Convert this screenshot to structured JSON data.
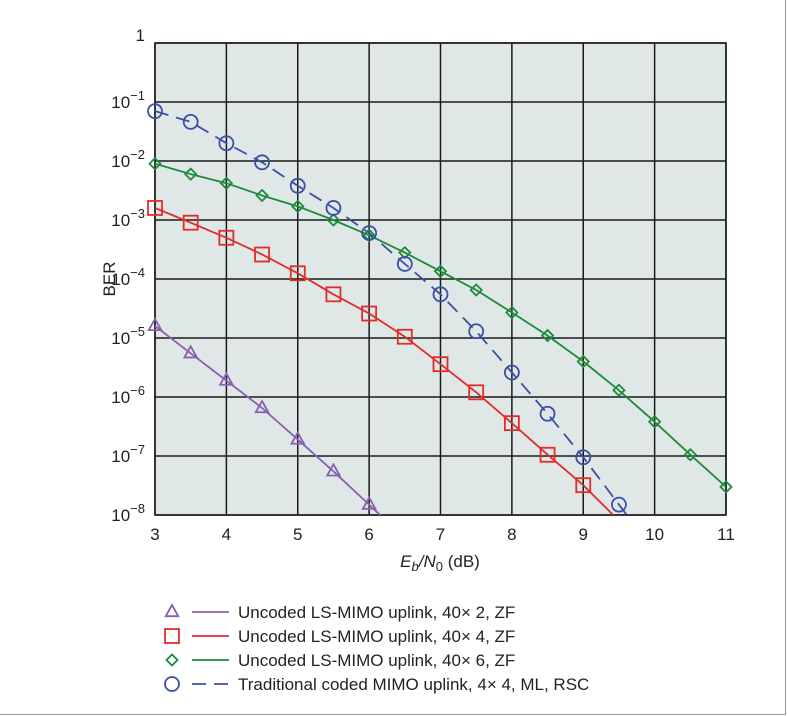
{
  "chart_data": {
    "type": "line",
    "title": "",
    "xlabel": {
      "main": "E",
      "main_sub": "b",
      "slash": "/N",
      "sub": "0",
      "unit": " (dB)"
    },
    "ylabel": "BER",
    "xlim": [
      3,
      11
    ],
    "ylim": [
      1e-08,
      1
    ],
    "yscale": "log",
    "grid": true,
    "legend_position": "bottom",
    "x_ticks": [
      "3",
      "4",
      "5",
      "6",
      "7",
      "8",
      "9",
      "10",
      "11"
    ],
    "y_ticks": [
      {
        "value": 1,
        "base": "1",
        "exp": ""
      },
      {
        "value": 0.1,
        "base": "10",
        "exp": "−1"
      },
      {
        "value": 0.01,
        "base": "10",
        "exp": "−2"
      },
      {
        "value": 0.001,
        "base": "10",
        "exp": "−3"
      },
      {
        "value": 0.0001,
        "base": "10",
        "exp": "−4"
      },
      {
        "value": 1e-05,
        "base": "10",
        "exp": "−5"
      },
      {
        "value": 1e-06,
        "base": "10",
        "exp": "−6"
      },
      {
        "value": 1e-07,
        "base": "10",
        "exp": "−7"
      },
      {
        "value": 1e-08,
        "base": "10",
        "exp": "−8"
      }
    ],
    "series": [
      {
        "name": "Uncoded LS-MIMO uplink, 40× 2, ZF",
        "color": "#8b5fb0",
        "marker": "triangle",
        "line": "solid",
        "x": [
          3,
          3.5,
          4,
          4.5,
          5,
          5.5,
          6,
          6.5
        ],
        "y": [
          1.6e-05,
          5.5e-06,
          1.9e-06,
          6.5e-07,
          1.9e-07,
          5.5e-08,
          1.5e-08,
          4e-09
        ],
        "marker_x": [
          3,
          3.5,
          4,
          4.5,
          5,
          5.5,
          6
        ]
      },
      {
        "name": "Uncoded LS-MIMO uplink, 40× 4, ZF",
        "color": "#e32b2b",
        "marker": "square",
        "line": "solid",
        "x": [
          3,
          3.5,
          4,
          4.5,
          5,
          5.5,
          6,
          6.5,
          7,
          7.5,
          8,
          8.5,
          9,
          9.5
        ],
        "y": [
          0.0016,
          0.0009,
          0.0005,
          0.00026,
          0.000125,
          5.5e-05,
          2.6e-05,
          1.05e-05,
          3.6e-06,
          1.2e-06,
          3.6e-07,
          1.05e-07,
          3.2e-08,
          8e-09
        ],
        "marker_x": [
          3,
          3.5,
          4,
          4.5,
          5,
          5.5,
          6,
          6.5,
          7,
          7.5,
          8,
          8.5,
          9
        ]
      },
      {
        "name": "Uncoded LS-MIMO uplink, 40× 6, ZF",
        "color": "#1f8a3b",
        "marker": "diamond",
        "line": "solid",
        "x": [
          3,
          3.5,
          4,
          4.5,
          5,
          5.5,
          6,
          6.5,
          7,
          7.5,
          8,
          8.5,
          9,
          9.5,
          10,
          10.5,
          11
        ],
        "y": [
          0.009,
          0.006,
          0.0042,
          0.0026,
          0.0017,
          0.001,
          0.00055,
          0.00028,
          0.000135,
          6.5e-05,
          2.7e-05,
          1.1e-05,
          4e-06,
          1.3e-06,
          3.8e-07,
          1.05e-07,
          3e-08
        ],
        "marker_x": [
          3,
          3.5,
          4,
          4.5,
          5,
          5.5,
          6,
          6.5,
          7,
          7.5,
          8,
          8.5,
          9,
          9.5,
          10,
          10.5,
          11
        ]
      },
      {
        "name": "Traditional coded MIMO uplink, 4× 4, ML, RSC",
        "color": "#3b4fa6",
        "marker": "circle",
        "line": "dashed",
        "x": [
          3,
          3.5,
          4,
          4.5,
          5,
          5.5,
          6,
          6.5,
          7,
          7.5,
          8,
          8.5,
          9,
          9.5,
          9.75
        ],
        "y": [
          0.07,
          0.046,
          0.02,
          0.0095,
          0.0038,
          0.0016,
          0.0006,
          0.00018,
          5.5e-05,
          1.3e-05,
          2.6e-06,
          5.2e-07,
          9.5e-08,
          1.5e-08,
          6e-09
        ],
        "marker_x": [
          3,
          3.5,
          4,
          4.5,
          5,
          5.5,
          6,
          6.5,
          7,
          7.5,
          8,
          8.5,
          9,
          9.5
        ]
      }
    ]
  },
  "colors": {
    "plot_background": "#dfe8e6",
    "grid": "#1a1a1a",
    "frame": "#9a9a9a"
  }
}
